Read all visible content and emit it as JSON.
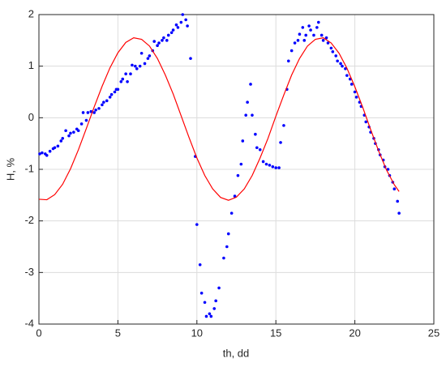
{
  "chart_data": {
    "type": "scatter",
    "xlabel": "th, dd",
    "ylabel": "H, %",
    "xlim": [
      0,
      25
    ],
    "ylim": [
      -4,
      2
    ],
    "xticks": [
      0,
      5,
      10,
      15,
      20,
      25
    ],
    "yticks": [
      -4,
      -3,
      -2,
      -1,
      0,
      1,
      2
    ],
    "grid": true,
    "series": [
      {
        "type": "scatter",
        "color": "#0000ff",
        "x": [
          0.05,
          0.2,
          0.4,
          0.5,
          0.7,
          0.9,
          1.0,
          1.2,
          1.4,
          1.5,
          1.7,
          1.9,
          2.0,
          2.2,
          2.4,
          2.5,
          2.7,
          2.8,
          3.0,
          3.1,
          3.3,
          3.5,
          3.6,
          3.8,
          4.0,
          4.1,
          4.3,
          4.5,
          4.6,
          4.8,
          4.9,
          5.0,
          5.2,
          5.3,
          5.5,
          5.6,
          5.8,
          5.9,
          6.1,
          6.2,
          6.4,
          6.5,
          6.7,
          6.9,
          7.0,
          7.2,
          7.3,
          7.5,
          7.6,
          7.8,
          7.9,
          8.1,
          8.2,
          8.4,
          8.5,
          8.7,
          8.8,
          9.0,
          9.1,
          9.3,
          9.4,
          9.6,
          9.9,
          10.0,
          10.2,
          10.3,
          10.5,
          10.6,
          10.8,
          10.9,
          11.1,
          11.2,
          11.4,
          11.7,
          11.9,
          12.0,
          12.2,
          12.4,
          12.6,
          12.8,
          12.9,
          13.1,
          13.2,
          13.4,
          13.5,
          13.7,
          13.8,
          14.0,
          14.2,
          14.4,
          14.6,
          14.8,
          15.0,
          15.2,
          15.3,
          15.5,
          15.7,
          15.8,
          16.0,
          16.2,
          16.4,
          16.5,
          16.7,
          16.8,
          16.9,
          17.1,
          17.2,
          17.4,
          17.6,
          17.7,
          17.9,
          18.0,
          18.2,
          18.3,
          18.5,
          18.6,
          18.8,
          18.9,
          19.1,
          19.2,
          19.4,
          19.5,
          19.7,
          19.8,
          20.0,
          20.1,
          20.3,
          20.4,
          20.6,
          20.7,
          20.9,
          21.0,
          21.2,
          21.3,
          21.5,
          21.6,
          21.8,
          21.9,
          22.1,
          22.2,
          22.4,
          22.5,
          22.7,
          22.8
        ],
        "values": [
          -0.7,
          -0.68,
          -0.7,
          -0.73,
          -0.65,
          -0.6,
          -0.58,
          -0.55,
          -0.45,
          -0.4,
          -0.25,
          -0.35,
          -0.3,
          -0.28,
          -0.22,
          -0.25,
          -0.12,
          0.1,
          -0.05,
          0.1,
          0.12,
          0.1,
          0.15,
          0.18,
          0.25,
          0.3,
          0.33,
          0.4,
          0.45,
          0.5,
          0.55,
          0.55,
          0.7,
          0.75,
          0.85,
          0.7,
          0.85,
          1.02,
          1.0,
          0.95,
          1.0,
          1.25,
          1.05,
          1.15,
          1.2,
          1.3,
          1.48,
          1.4,
          1.45,
          1.5,
          1.55,
          1.5,
          1.6,
          1.65,
          1.7,
          1.8,
          1.75,
          1.85,
          2.0,
          1.9,
          1.78,
          1.15,
          -0.75,
          -2.07,
          -2.85,
          -3.4,
          -3.58,
          -3.85,
          -3.8,
          -3.85,
          -3.7,
          -3.55,
          -3.3,
          -2.72,
          -2.5,
          -2.25,
          -1.85,
          -1.52,
          -1.12,
          -0.9,
          -0.45,
          0.05,
          0.3,
          0.65,
          0.05,
          -0.32,
          -0.58,
          -0.62,
          -0.85,
          -0.9,
          -0.92,
          -0.95,
          -0.97,
          -0.97,
          -0.48,
          -0.15,
          0.55,
          1.1,
          1.3,
          1.45,
          1.5,
          1.62,
          1.75,
          1.5,
          1.6,
          1.78,
          1.7,
          1.6,
          1.75,
          1.85,
          1.6,
          1.5,
          1.55,
          1.45,
          1.35,
          1.28,
          1.2,
          1.1,
          1.05,
          1.0,
          0.95,
          0.82,
          0.75,
          0.65,
          0.5,
          0.4,
          0.3,
          0.22,
          0.05,
          -0.08,
          -0.18,
          -0.28,
          -0.4,
          -0.5,
          -0.62,
          -0.72,
          -0.82,
          -0.95,
          -1.0,
          -1.12,
          -1.25,
          -1.38,
          -1.62,
          -1.85
        ]
      },
      {
        "type": "line",
        "color": "#ff0000",
        "x": [
          0,
          0.5,
          1,
          1.5,
          2,
          2.5,
          3,
          3.5,
          4,
          4.5,
          5,
          5.5,
          6,
          6.5,
          7,
          7.5,
          8,
          8.5,
          9,
          9.5,
          10,
          10.5,
          11,
          11.5,
          12,
          12.5,
          13,
          13.5,
          14,
          14.5,
          15,
          15.5,
          16,
          16.5,
          17,
          17.5,
          18,
          18.5,
          19,
          19.5,
          20,
          20.5,
          21,
          21.5,
          22,
          22.5,
          22.8
        ],
        "values": [
          -1.58,
          -1.59,
          -1.49,
          -1.29,
          -0.99,
          -0.62,
          -0.21,
          0.21,
          0.61,
          0.97,
          1.26,
          1.46,
          1.55,
          1.52,
          1.39,
          1.15,
          0.83,
          0.46,
          0.04,
          -0.38,
          -0.78,
          -1.12,
          -1.38,
          -1.545,
          -1.6,
          -1.54,
          -1.38,
          -1.12,
          -0.78,
          -0.4,
          0.03,
          0.44,
          0.83,
          1.15,
          1.39,
          1.52,
          1.55,
          1.45,
          1.25,
          0.96,
          0.6,
          0.2,
          -0.23,
          -0.64,
          -1.01,
          -1.3,
          -1.43
        ]
      }
    ]
  }
}
